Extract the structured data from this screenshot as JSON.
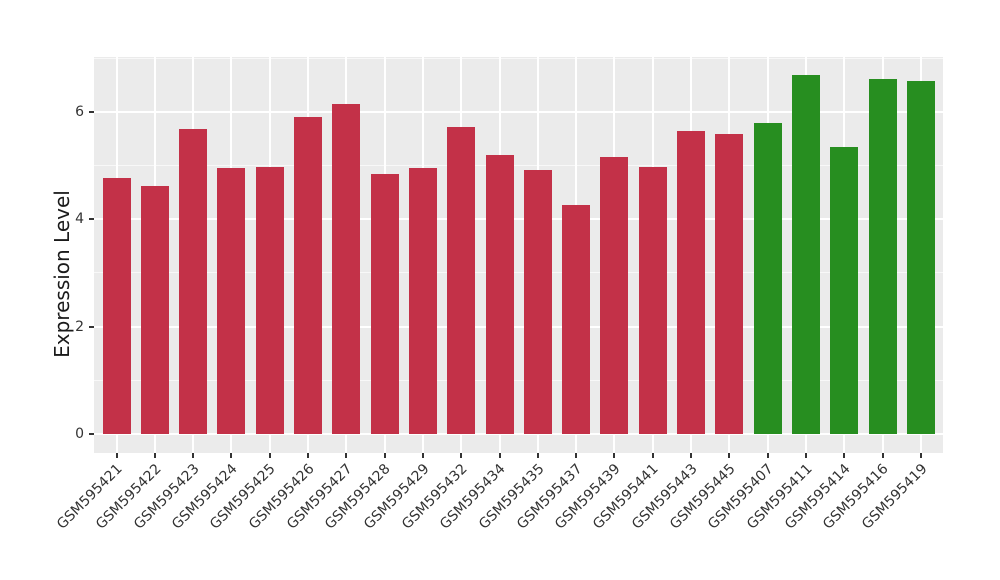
{
  "chart_data": {
    "type": "bar",
    "title": "",
    "ylabel": "Expression Level",
    "xlabel": "",
    "categories": [
      "GSM595421",
      "GSM595422",
      "GSM595423",
      "GSM595424",
      "GSM595425",
      "GSM595426",
      "GSM595427",
      "GSM595428",
      "GSM595429",
      "GSM595432",
      "GSM595434",
      "GSM595435",
      "GSM595437",
      "GSM595439",
      "GSM595441",
      "GSM595443",
      "GSM595445",
      "GSM595407",
      "GSM595411",
      "GSM595414",
      "GSM595416",
      "GSM595419"
    ],
    "values": [
      4.76,
      4.62,
      5.68,
      4.96,
      4.98,
      5.9,
      6.14,
      4.84,
      4.95,
      5.72,
      5.2,
      4.92,
      4.26,
      5.15,
      4.98,
      5.64,
      5.59,
      5.8,
      6.69,
      5.34,
      6.61,
      6.57
    ],
    "bar_groups": [
      "red",
      "red",
      "red",
      "red",
      "red",
      "red",
      "red",
      "red",
      "red",
      "red",
      "red",
      "red",
      "red",
      "red",
      "red",
      "red",
      "red",
      "green",
      "green",
      "green",
      "green",
      "green"
    ],
    "group_colors": {
      "red": "#C33148",
      "green": "#278E20"
    },
    "yticks": [
      0,
      2,
      4,
      6
    ],
    "yticks_minor": [
      1,
      3,
      5,
      7
    ],
    "ylim": [
      0,
      7.02
    ],
    "x_tick_rotation_deg": 45,
    "legend": "none",
    "grid": true,
    "panel_background": "#EBEBEB",
    "grid_major_color": "#FFFFFF",
    "grid_minor_color": "rgba(255,255,255,0.65)",
    "axis_text_color": "#333333",
    "axis_title_color": "#1A1A1A",
    "tick_mark_color": "#333333"
  }
}
